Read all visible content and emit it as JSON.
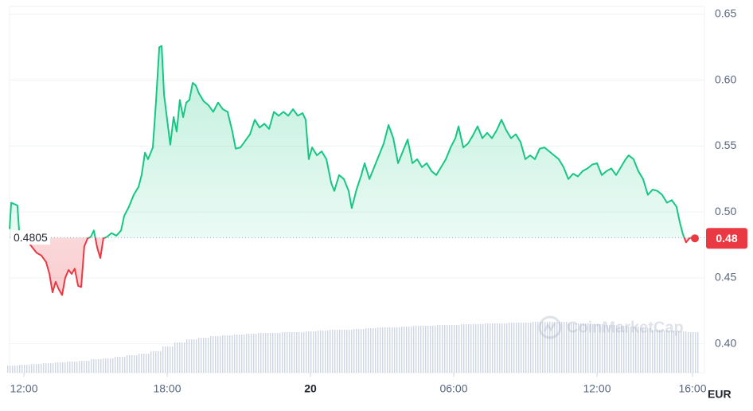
{
  "chart_data": {
    "type": "line",
    "x": [
      -0.6,
      -0.53,
      -0.27,
      -0.2,
      0.53,
      0.73,
      0.93,
      1.07,
      1.2,
      1.33,
      1.47,
      1.6,
      1.73,
      1.87,
      2,
      2.13,
      2.27,
      2.4,
      2.53,
      2.67,
      2.8,
      2.93,
      3.07,
      3.2,
      3.33,
      3.47,
      3.67,
      3.87,
      4.07,
      4.2,
      4.4,
      4.6,
      4.8,
      4.93,
      5.07,
      5.2,
      5.4,
      5.53,
      5.67,
      5.77,
      5.87,
      6,
      6.13,
      6.27,
      6.4,
      6.53,
      6.67,
      6.8,
      6.93,
      7.07,
      7.2,
      7.33,
      7.53,
      7.73,
      7.93,
      8.13,
      8.33,
      8.53,
      8.73,
      8.87,
      9.07,
      9.27,
      9.47,
      9.67,
      9.87,
      10.07,
      10.27,
      10.47,
      10.67,
      10.87,
      11.07,
      11.27,
      11.47,
      11.67,
      11.8,
      11.93,
      12.07,
      12.27,
      12.47,
      12.67,
      12.87,
      13,
      13.2,
      13.4,
      13.6,
      13.73,
      13.93,
      14.13,
      14.27,
      14.47,
      14.67,
      14.87,
      15.07,
      15.27,
      15.47,
      15.67,
      15.87,
      16.07,
      16.27,
      16.47,
      16.67,
      16.87,
      17.07,
      17.27,
      17.47,
      17.67,
      17.87,
      18.07,
      18.2,
      18.4,
      18.6,
      18.8,
      19,
      19.2,
      19.4,
      19.6,
      19.8,
      20,
      20.2,
      20.4,
      20.6,
      20.8,
      21,
      21.2,
      21.4,
      21.6,
      21.8,
      22,
      22.2,
      22.4,
      22.6,
      22.8,
      23,
      23.2,
      23.4,
      23.6,
      23.8,
      24,
      24.2,
      24.4,
      24.6,
      24.8,
      25,
      25.2,
      25.33,
      25.53,
      25.73,
      25.93,
      26.13,
      26.33,
      26.53,
      26.73,
      26.93,
      27.13,
      27.33,
      27.47,
      27.6,
      27.73,
      27.87,
      28
    ],
    "values": [
      0.487,
      0.507,
      0.505,
      0.486,
      0.469,
      0.467,
      0.462,
      0.453,
      0.439,
      0.447,
      0.441,
      0.437,
      0.45,
      0.456,
      0.453,
      0.457,
      0.444,
      0.443,
      0.474,
      0.48,
      0.481,
      0.486,
      0.473,
      0.465,
      0.48,
      0.481,
      0.484,
      0.482,
      0.486,
      0.497,
      0.504,
      0.513,
      0.519,
      0.528,
      0.545,
      0.54,
      0.549,
      0.583,
      0.625,
      0.626,
      0.589,
      0.57,
      0.551,
      0.572,
      0.561,
      0.585,
      0.572,
      0.583,
      0.585,
      0.598,
      0.596,
      0.59,
      0.584,
      0.581,
      0.576,
      0.583,
      0.578,
      0.576,
      0.561,
      0.548,
      0.549,
      0.554,
      0.559,
      0.57,
      0.564,
      0.567,
      0.563,
      0.576,
      0.573,
      0.576,
      0.573,
      0.578,
      0.573,
      0.575,
      0.57,
      0.54,
      0.549,
      0.543,
      0.546,
      0.54,
      0.522,
      0.516,
      0.528,
      0.525,
      0.516,
      0.503,
      0.517,
      0.528,
      0.537,
      0.525,
      0.534,
      0.543,
      0.552,
      0.566,
      0.556,
      0.537,
      0.546,
      0.555,
      0.537,
      0.54,
      0.534,
      0.537,
      0.531,
      0.528,
      0.534,
      0.54,
      0.549,
      0.556,
      0.565,
      0.549,
      0.552,
      0.558,
      0.565,
      0.556,
      0.56,
      0.556,
      0.562,
      0.57,
      0.562,
      0.556,
      0.559,
      0.553,
      0.54,
      0.543,
      0.54,
      0.548,
      0.549,
      0.546,
      0.543,
      0.54,
      0.534,
      0.525,
      0.529,
      0.527,
      0.531,
      0.533,
      0.536,
      0.537,
      0.528,
      0.531,
      0.533,
      0.528,
      0.534,
      0.54,
      0.543,
      0.54,
      0.531,
      0.525,
      0.513,
      0.517,
      0.516,
      0.513,
      0.507,
      0.509,
      0.504,
      0.492,
      0.483,
      0.477,
      0.48,
      0.481
    ],
    "up_color": "#16c784",
    "down_color": "#ea3943",
    "reference": {
      "value": 0.4805,
      "label": "0.4805"
    },
    "current": {
      "value": 0.48,
      "label": "0.48"
    },
    "volume": {
      "x": [
        -0.5,
        0,
        0.5,
        1,
        1.5,
        2,
        2.5,
        3,
        3.5,
        4,
        4.5,
        5,
        5.5,
        6,
        6.5,
        7,
        7.5,
        8,
        8.5,
        9,
        9.5,
        10,
        10.5,
        11,
        11.5,
        12,
        12.5,
        13,
        13.5,
        14,
        14.5,
        15,
        15.5,
        16,
        16.5,
        17,
        17.5,
        18,
        18.5,
        19,
        19.5,
        20,
        20.5,
        21,
        21.5,
        22,
        22.5,
        23,
        23.5,
        24,
        24.5,
        25,
        25.5,
        26,
        26.5,
        27,
        27.5,
        28
      ],
      "values": [
        9,
        10,
        11,
        12,
        13,
        14,
        15,
        17,
        18,
        20,
        22,
        24,
        27,
        33,
        38,
        42,
        44,
        46,
        47,
        48,
        49,
        50,
        50,
        51,
        51,
        52,
        53,
        54,
        54,
        55,
        56,
        57,
        57,
        58,
        59,
        59,
        60,
        60,
        61,
        61,
        62,
        62,
        63,
        63,
        64,
        64,
        64,
        62,
        62,
        61,
        60,
        59,
        58,
        56,
        54,
        53,
        52,
        51
      ],
      "vlim": [
        0,
        100
      ]
    },
    "xlim": [
      -0.6,
      28.5
    ],
    "xticks": [
      {
        "value": 0,
        "label": "12:00"
      },
      {
        "value": 6,
        "label": "18:00"
      },
      {
        "value": 12,
        "label": "20"
      },
      {
        "value": 18,
        "label": "06:00"
      },
      {
        "value": 24,
        "label": "12:00"
      },
      {
        "value": 28,
        "label": "16:00"
      }
    ],
    "ylim": [
      0.378,
      0.656
    ],
    "yticks": [
      {
        "value": 0.4,
        "label": "0.40"
      },
      0.45,
      {
        "value": 0.5,
        "label": "0.50"
      },
      0.55,
      {
        "value": 0.6,
        "label": "0.60"
      },
      0.65
    ],
    "currency": "EUR",
    "watermark": "CoinMarketCap",
    "grid": true
  }
}
